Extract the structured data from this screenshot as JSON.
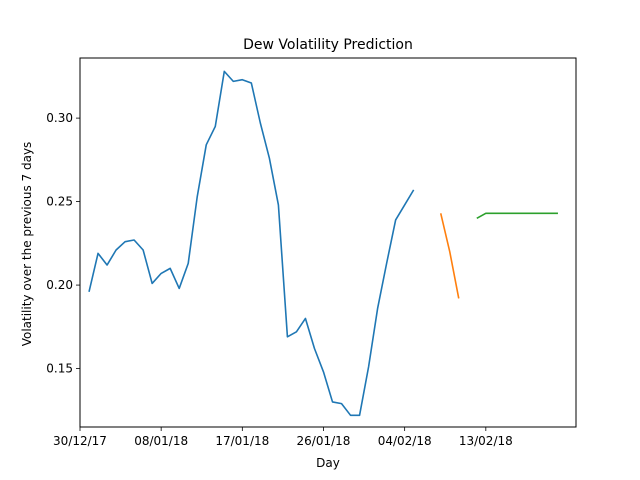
{
  "chart_data": {
    "type": "line",
    "title": "Dew Volatility Prediction",
    "xlabel": "Day",
    "ylabel": "Volatility over the previous 7 days",
    "x_ticks": [
      "30/12/17",
      "08/01/18",
      "17/01/18",
      "26/01/18",
      "04/02/18",
      "13/02/18"
    ],
    "y_ticks": [
      "0.15",
      "0.20",
      "0.25",
      "0.30"
    ],
    "xlim": [
      "2017-12-30",
      "2018-02-23"
    ],
    "ylim": [
      0.115,
      0.336
    ],
    "grid": false,
    "series": [
      {
        "color": "#1f77b4",
        "points": [
          [
            "2017-12-31",
            0.196
          ],
          [
            "2018-01-01",
            0.219
          ],
          [
            "2018-01-02",
            0.212
          ],
          [
            "2018-01-03",
            0.221
          ],
          [
            "2018-01-04",
            0.226
          ],
          [
            "2018-01-05",
            0.227
          ],
          [
            "2018-01-06",
            0.221
          ],
          [
            "2018-01-07",
            0.201
          ],
          [
            "2018-01-08",
            0.207
          ],
          [
            "2018-01-09",
            0.21
          ],
          [
            "2018-01-10",
            0.198
          ],
          [
            "2018-01-11",
            0.213
          ],
          [
            "2018-01-12",
            0.253
          ],
          [
            "2018-01-13",
            0.284
          ],
          [
            "2018-01-14",
            0.295
          ],
          [
            "2018-01-15",
            0.328
          ],
          [
            "2018-01-16",
            0.322
          ],
          [
            "2018-01-17",
            0.323
          ],
          [
            "2018-01-18",
            0.321
          ],
          [
            "2018-01-19",
            0.297
          ],
          [
            "2018-01-20",
            0.276
          ],
          [
            "2018-01-21",
            0.248
          ],
          [
            "2018-01-22",
            0.169
          ],
          [
            "2018-01-23",
            0.172
          ],
          [
            "2018-01-24",
            0.18
          ],
          [
            "2018-01-25",
            0.162
          ],
          [
            "2018-01-26",
            0.148
          ],
          [
            "2018-01-27",
            0.13
          ],
          [
            "2018-01-28",
            0.129
          ],
          [
            "2018-01-29",
            0.122
          ],
          [
            "2018-01-30",
            0.122
          ],
          [
            "2018-01-31",
            0.151
          ],
          [
            "2018-02-01",
            0.186
          ],
          [
            "2018-02-02",
            0.213
          ],
          [
            "2018-02-03",
            0.239
          ],
          [
            "2018-02-04",
            0.248
          ],
          [
            "2018-02-05",
            0.257
          ]
        ]
      },
      {
        "color": "#ff7f0e",
        "points": [
          [
            "2018-02-08",
            0.243
          ],
          [
            "2018-02-09",
            0.22
          ],
          [
            "2018-02-10",
            0.192
          ]
        ]
      },
      {
        "color": "#2ca02c",
        "points": [
          [
            "2018-02-12",
            0.24
          ],
          [
            "2018-02-13",
            0.243
          ],
          [
            "2018-02-14",
            0.243
          ],
          [
            "2018-02-15",
            0.243
          ],
          [
            "2018-02-16",
            0.243
          ],
          [
            "2018-02-17",
            0.243
          ],
          [
            "2018-02-18",
            0.243
          ],
          [
            "2018-02-19",
            0.243
          ],
          [
            "2018-02-20",
            0.243
          ],
          [
            "2018-02-21",
            0.243
          ]
        ]
      }
    ]
  }
}
